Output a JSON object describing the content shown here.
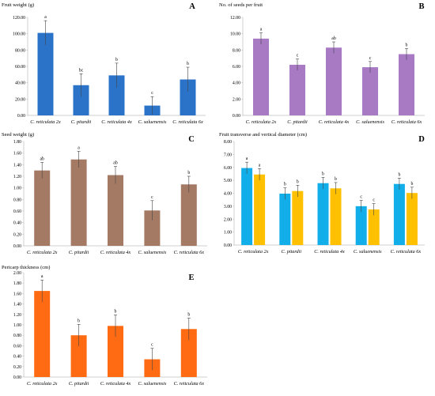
{
  "chart_data": [
    {
      "panel_label": "A",
      "type": "bar",
      "title": "Fruit weight (g)",
      "categories": [
        "C. reticulata 2x",
        "C. pitardii",
        "C. reticulata 4x",
        "C. saluenensis",
        "C. reticulata 6x"
      ],
      "series": [
        {
          "values": [
            101,
            37,
            49,
            12,
            44
          ],
          "errors": [
            15,
            14,
            15,
            11,
            15
          ],
          "letters": [
            "a",
            "bc",
            "b",
            "c",
            "b"
          ]
        }
      ],
      "yticks": [
        "0.00",
        "20.00",
        "40.00",
        "60.00",
        "80.00",
        "100.00",
        "120.00"
      ],
      "ylim": [
        0,
        120
      ],
      "colors": [
        "#2a73c8"
      ]
    },
    {
      "panel_label": "B",
      "type": "bar",
      "title": "No. of seeds per fruit",
      "categories": [
        "C. reticulata 2x",
        "C. pitardii",
        "C. reticulata 4x",
        "C. saluenensis",
        "C. reticulata 6x"
      ],
      "series": [
        {
          "values": [
            9.4,
            6.2,
            8.3,
            5.9,
            7.5
          ],
          "errors": [
            0.7,
            0.7,
            0.7,
            0.7,
            0.7
          ],
          "letters": [
            "a",
            "c",
            "ab",
            "c",
            "b"
          ]
        }
      ],
      "yticks": [
        "0.00",
        "2.00",
        "4.00",
        "6.00",
        "8.00",
        "10.00",
        "12.00"
      ],
      "ylim": [
        0,
        12
      ],
      "colors": [
        "#a97ac4"
      ]
    },
    {
      "panel_label": "C",
      "type": "bar",
      "title": "Seed weight (g)",
      "categories": [
        "C. reticulata 2x",
        "C. pitardii",
        "C. reticulata 4x",
        "C. saluenensis",
        "C. reticulata 6x"
      ],
      "series": [
        {
          "values": [
            1.3,
            1.49,
            1.22,
            0.61,
            1.06
          ],
          "errors": [
            0.14,
            0.14,
            0.15,
            0.17,
            0.14
          ],
          "letters": [
            "ab",
            "a",
            "ab",
            "c",
            "b"
          ]
        }
      ],
      "yticks": [
        "0.00",
        "0.20",
        "0.40",
        "0.60",
        "0.80",
        "1.00",
        "1.20",
        "1.40",
        "1.60",
        "1.80"
      ],
      "ylim": [
        0,
        1.8
      ],
      "colors": [
        "#a57a65"
      ]
    },
    {
      "panel_label": "D",
      "type": "bar",
      "title": "Fruit transverse and vertical diameter (cm)",
      "categories": [
        "C. reticulata 2x",
        "C. pitardii",
        "C. reticulata 4x",
        "C. saluenensis",
        "C. reticulata 6x"
      ],
      "series": [
        {
          "values": [
            5.95,
            3.97,
            4.78,
            3.0,
            4.72
          ],
          "errors": [
            0.45,
            0.45,
            0.45,
            0.45,
            0.45
          ],
          "letters": [
            "a",
            "b",
            "b",
            "c",
            "b"
          ]
        },
        {
          "values": [
            5.45,
            4.17,
            4.38,
            2.75,
            4.02
          ],
          "errors": [
            0.45,
            0.45,
            0.45,
            0.45,
            0.45
          ],
          "letters": [
            "a",
            "b",
            "b",
            "c",
            "b"
          ]
        }
      ],
      "yticks": [
        "0.00",
        "1.00",
        "2.00",
        "3.00",
        "4.00",
        "5.00",
        "6.00",
        "7.00",
        "8.00"
      ],
      "ylim": [
        0,
        8
      ],
      "colors": [
        "#12aee9",
        "#ffc000"
      ]
    },
    {
      "panel_label": "E",
      "type": "bar",
      "title": "Pericarp thickness (cm)",
      "categories": [
        "C. reticulata 2x",
        "C. pitardii",
        "C. reticulata 4x",
        "C. saluenensis",
        "C. reticulata 6x"
      ],
      "series": [
        {
          "values": [
            1.65,
            0.8,
            0.98,
            0.34,
            0.92
          ],
          "errors": [
            0.21,
            0.21,
            0.21,
            0.21,
            0.21
          ],
          "letters": [
            "a",
            "b",
            "b",
            "c",
            "b"
          ]
        }
      ],
      "yticks": [
        "0.00",
        "0.20",
        "0.40",
        "0.60",
        "0.80",
        "1.00",
        "1.20",
        "1.40",
        "1.60",
        "1.80",
        "2.00"
      ],
      "ylim": [
        0,
        2
      ],
      "colors": [
        "#ff6b12"
      ]
    }
  ]
}
